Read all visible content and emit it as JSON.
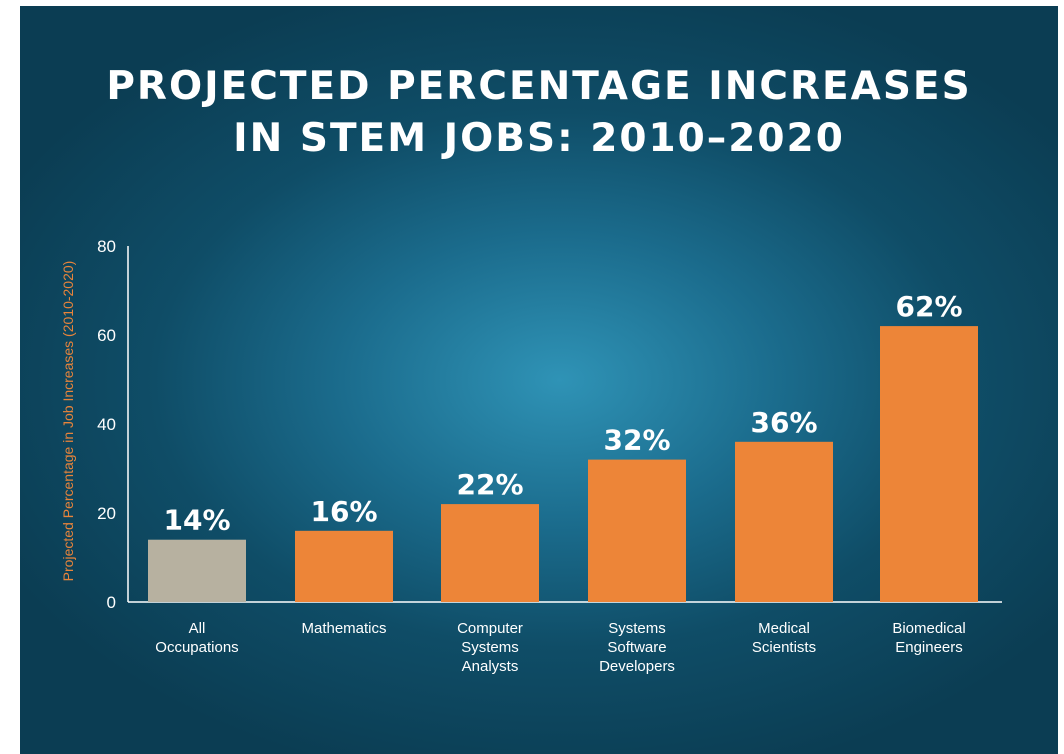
{
  "chart_data": {
    "type": "bar",
    "title_lines": [
      "PROJECTED PERCENTAGE INCREASES",
      "IN STEM JOBS: 2010–2020"
    ],
    "ylabel": "Projected Percentage in Job Increases (2010-2020)",
    "xlabel": "",
    "ylim": [
      0,
      80
    ],
    "yticks": [
      0,
      20,
      40,
      60,
      80
    ],
    "grid": false,
    "categories": [
      [
        "All",
        "Occupations"
      ],
      [
        "Mathematics"
      ],
      [
        "Computer",
        "Systems",
        "Analysts"
      ],
      [
        "Systems",
        "Software",
        "Developers"
      ],
      [
        "Medical",
        "Scientists"
      ],
      [
        "Biomedical",
        "Engineers"
      ]
    ],
    "values": [
      14,
      16,
      22,
      32,
      36,
      62
    ],
    "data_labels": [
      "14%",
      "16%",
      "22%",
      "32%",
      "36%",
      "62%"
    ],
    "colors": [
      "#b7b1a0",
      "#ed8538",
      "#ed8538",
      "#ed8538",
      "#ed8538",
      "#ed8538"
    ]
  }
}
